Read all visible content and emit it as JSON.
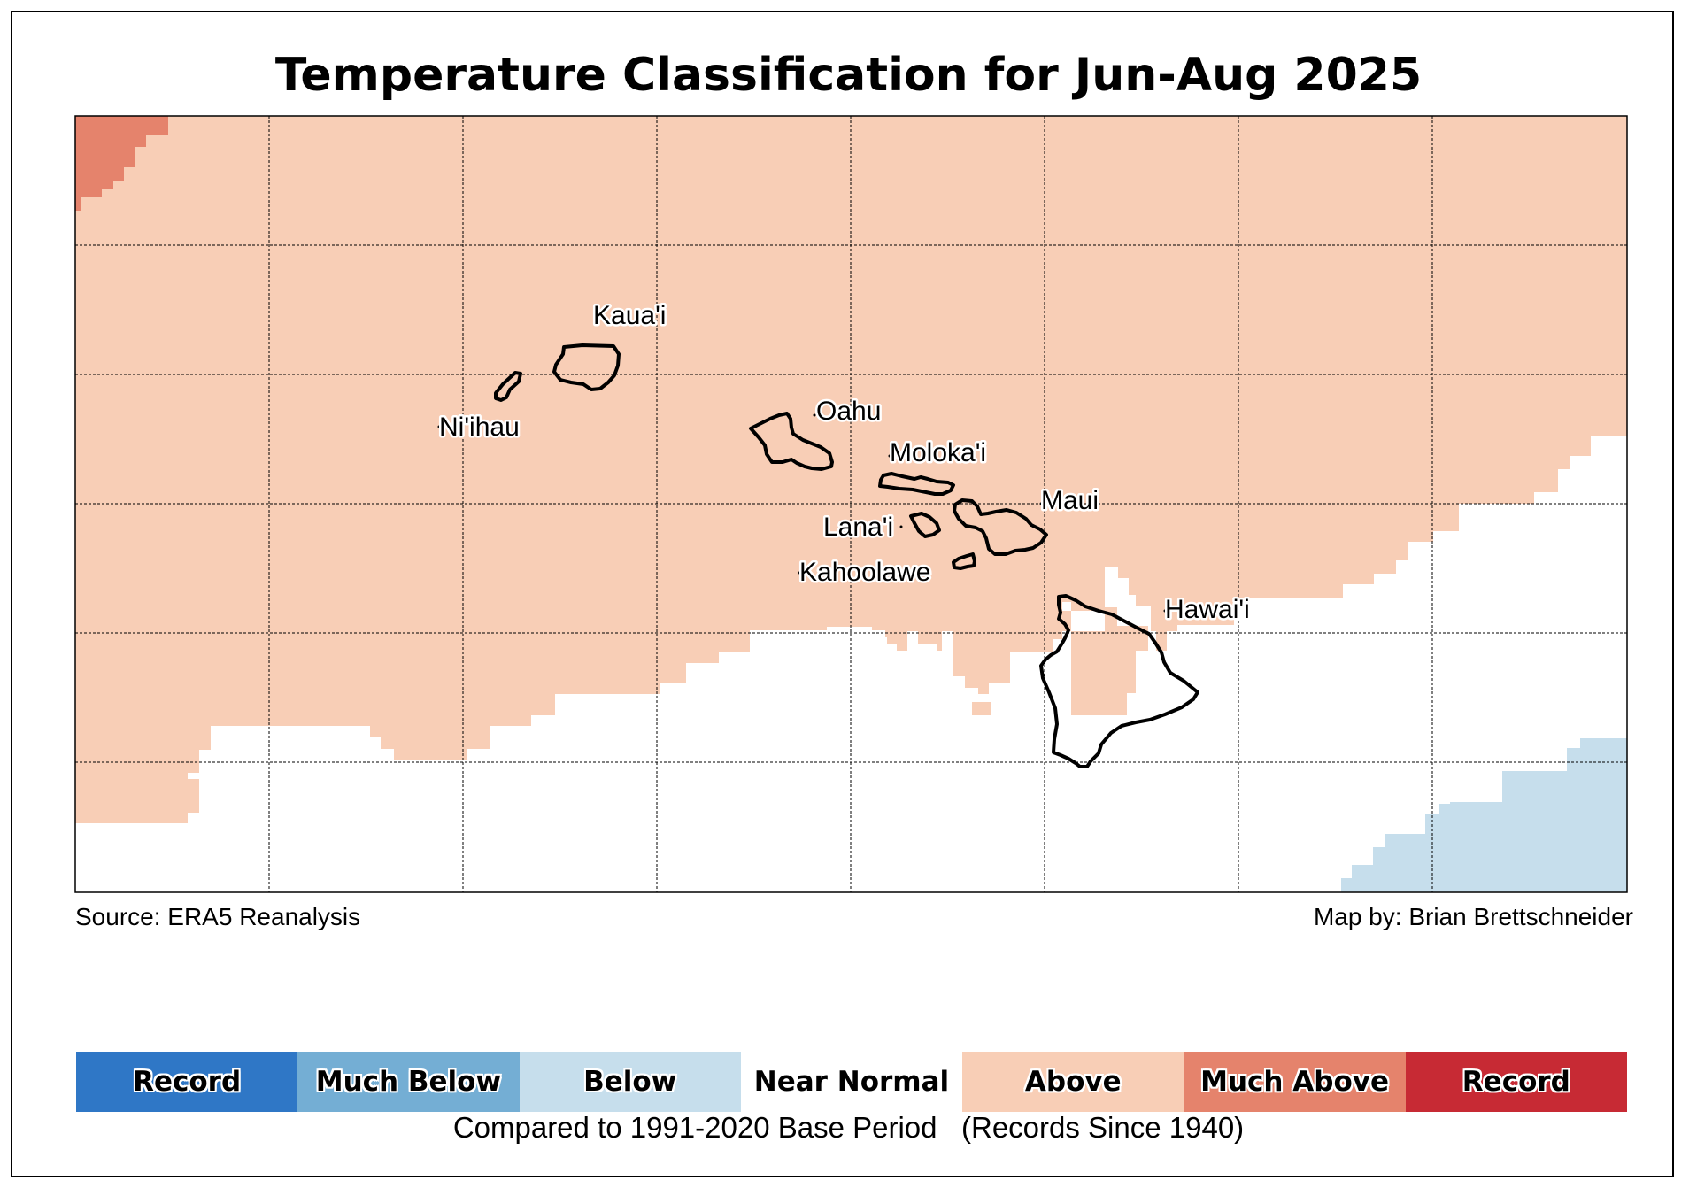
{
  "title": "Temperature Classification for Jun-Aug 2025",
  "source": "Source: ERA5 Reanalysis",
  "credit": "Map by: Brian Brettschneider",
  "base_period": "Compared to 1991-2020 Base Period   (Records Since 1940)",
  "colors": {
    "record_cold": "#2f77c6",
    "much_below": "#74aed4",
    "below": "#c6deec",
    "near_normal": "#ffffff",
    "above": "#f8ceb6",
    "much_above": "#e5836c",
    "record_warm": "#c72a34"
  },
  "legend": [
    {
      "label": "Record",
      "color": "#2f77c6"
    },
    {
      "label": "Much Below",
      "color": "#74aed4"
    },
    {
      "label": "Below",
      "color": "#c6deec"
    },
    {
      "label": "Near Normal",
      "color": "#ffffff"
    },
    {
      "label": "Above",
      "color": "#f8ceb6"
    },
    {
      "label": "Much Above",
      "color": "#e5836c"
    },
    {
      "label": "Record",
      "color": "#c72a34"
    }
  ],
  "islands": {
    "niihau": "Ni'ihau",
    "kauai": "Kaua'i",
    "oahu": "Oahu",
    "molokai": "Moloka'i",
    "lanai": "Lana'i",
    "maui": "Maui",
    "kahoolawe": "Kahoolawe",
    "hawaii": "Hawai'i"
  }
}
